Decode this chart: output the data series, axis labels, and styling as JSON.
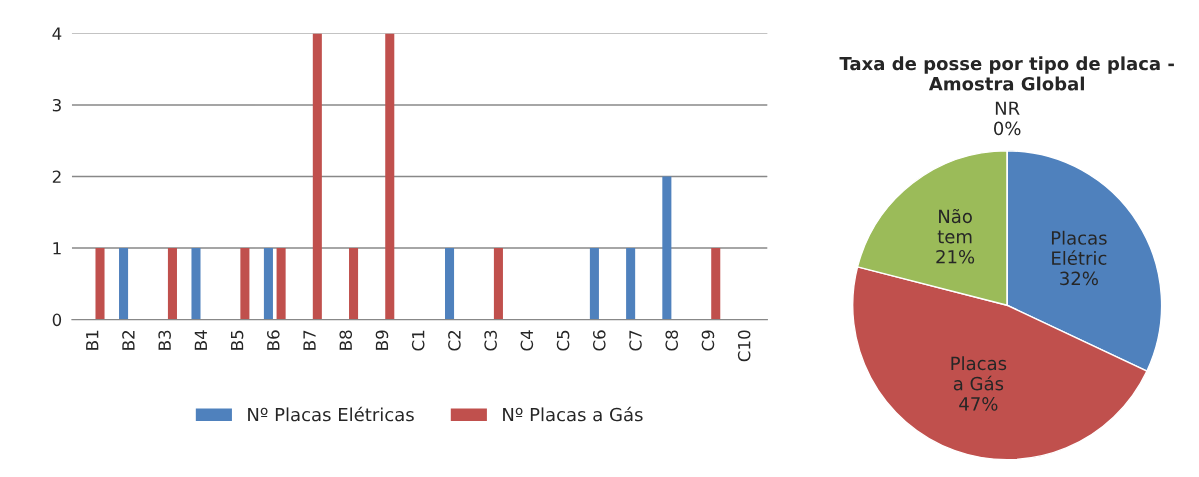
{
  "chart_data": [
    {
      "type": "bar",
      "categories": [
        "B1",
        "B2",
        "B3",
        "B4",
        "B5",
        "B6",
        "B7",
        "B8",
        "B9",
        "C1",
        "C2",
        "C3",
        "C4",
        "C5",
        "C6",
        "C7",
        "C8",
        "C9",
        "C10"
      ],
      "series": [
        {
          "name": "Nº Placas Elétricas",
          "color": "#4f81bd",
          "values": [
            0,
            1,
            0,
            1,
            0,
            1,
            0,
            0,
            0,
            0,
            1,
            0,
            0,
            0,
            1,
            1,
            2,
            0,
            0
          ]
        },
        {
          "name": "Nº Placas a Gás",
          "color": "#c0504d",
          "values": [
            1,
            0,
            1,
            0,
            1,
            1,
            4,
            1,
            4,
            0,
            0,
            1,
            0,
            0,
            0,
            0,
            0,
            1,
            0
          ]
        }
      ],
      "ylim": [
        0,
        4
      ],
      "yticks": [
        0,
        1,
        2,
        3,
        4
      ],
      "grid": "y",
      "legend": "bottom"
    },
    {
      "type": "pie",
      "title": "Taxa de posse por tipo de placa - Amostra Global",
      "categories": [
        "Placas\nElétric",
        "Placas\na Gás",
        "Não\ntem",
        "NR"
      ],
      "values": [
        32,
        47,
        21,
        0
      ],
      "value_labels": [
        "32%",
        "47%",
        "21%",
        "0%"
      ],
      "colors": [
        "#4f81bd",
        "#c0504d",
        "#9bbb59",
        "#f79646"
      ]
    }
  ]
}
